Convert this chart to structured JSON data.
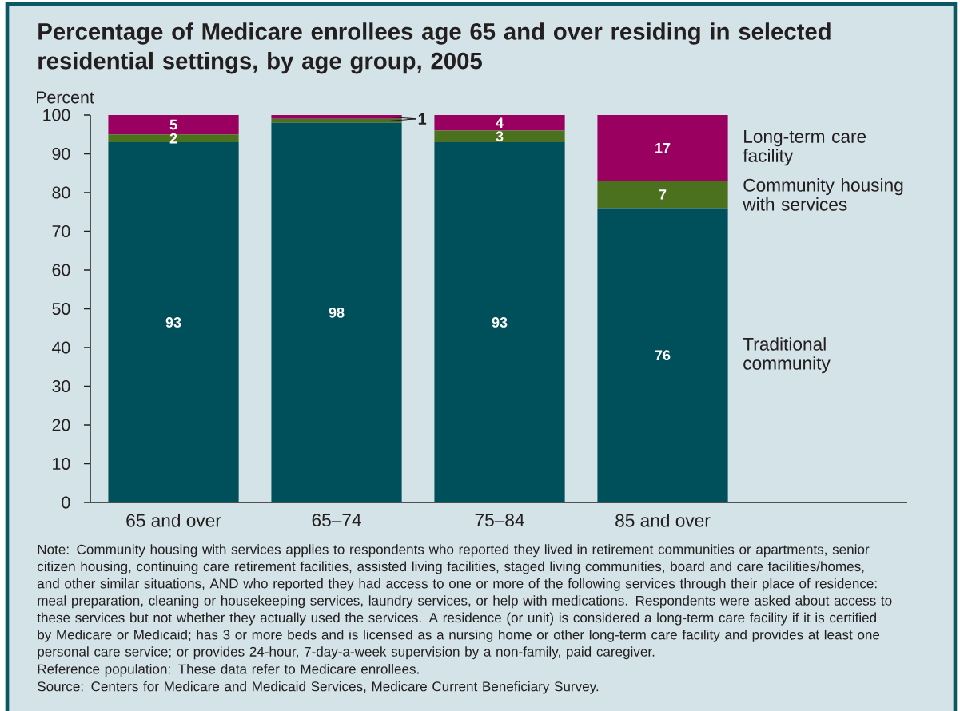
{
  "chart_data": {
    "type": "bar",
    "stacked": true,
    "title": "Percentage of Medicare enrollees age 65 and over residing in selected residential settings, by age group, 2005",
    "ylabel": "Percent",
    "categories": [
      "65 and over",
      "65–74",
      "75–84",
      "85 and over"
    ],
    "series": [
      {
        "name": "Traditional community",
        "color": "#00505b",
        "values": [
          93,
          98,
          93,
          76
        ],
        "value_labels": [
          "93",
          "98",
          "93",
          "76"
        ]
      },
      {
        "name": "Community housing with services",
        "color": "#4b711e",
        "values": [
          2,
          1,
          3,
          7
        ],
        "value_labels": [
          "2",
          "1",
          "3",
          "7"
        ]
      },
      {
        "name": "Long-term care facility",
        "color": "#990060",
        "values": [
          5,
          1,
          4,
          17
        ],
        "value_labels": [
          "5",
          null,
          "4",
          "17"
        ]
      }
    ],
    "ylim": [
      0,
      100
    ],
    "yticks": [
      0,
      10,
      20,
      30,
      40,
      50,
      60,
      70,
      80,
      90,
      100
    ],
    "annotations": [
      "Note: Community housing with services applies to respondents who reported they lived in retirement communities or apartments, senior citizen housing, continuing care retirement facilities, assisted living facilities, staged living communities, board and care facilities/homes, and other similar situations, AND who reported they had access to one or more of the following services through their place of residence: meal preparation, cleaning or housekeeping services, laundry services, or help with medications. Respondents were asked about access to these services but not whether they actually used the services. A residence (or unit) is considered a long-term care facility if it is certified by Medicare or Medicaid; has 3 or more beds and is licensed as a nursing home or other long-term care facility and provides at least one personal care service; or provides 24-hour, 7-day-a-week supervision by a non-family, paid caregiver.",
      "Reference population: These data refer to Medicare enrollees.",
      "Source: Centers for Medicare and Medicaid Services, Medicare Current Beneficiary Survey."
    ]
  }
}
